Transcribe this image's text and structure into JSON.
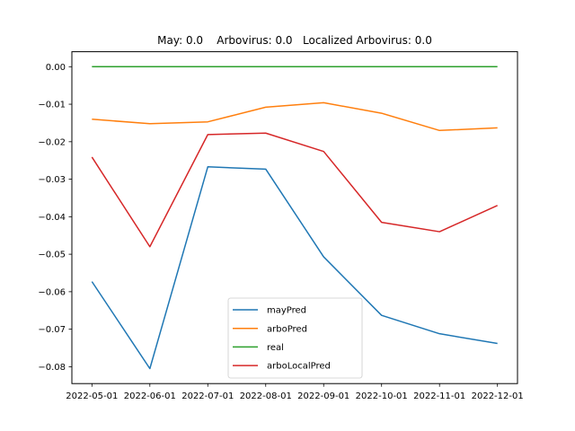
{
  "chart_data": {
    "type": "line",
    "title": "May: 0.0    Arbovirus: 0.0   Localized Arbovirus: 0.0",
    "xlabel": "",
    "ylabel": "",
    "x": [
      "2022-05-01",
      "2022-06-01",
      "2022-07-01",
      "2022-08-01",
      "2022-09-01",
      "2022-10-01",
      "2022-11-01",
      "2022-12-01"
    ],
    "ylim": [
      -0.0845,
      0.004
    ],
    "yticks": [
      0.0,
      -0.01,
      -0.02,
      -0.03,
      -0.04,
      -0.05,
      -0.06,
      -0.07,
      -0.08
    ],
    "ytick_labels": [
      "0.00",
      "−0.01",
      "−0.02",
      "−0.03",
      "−0.04",
      "−0.05",
      "−0.06",
      "−0.07",
      "−0.08"
    ],
    "grid": false,
    "legend_position": "lower-center",
    "series": [
      {
        "name": "mayPred",
        "color": "#1f77b4",
        "values": [
          -0.0573,
          -0.0805,
          -0.0267,
          -0.0273,
          -0.0507,
          -0.0663,
          -0.0712,
          -0.0738
        ]
      },
      {
        "name": "arboPred",
        "color": "#ff7f0e",
        "values": [
          -0.014,
          -0.0152,
          -0.0147,
          -0.0108,
          -0.0096,
          -0.0124,
          -0.017,
          -0.0163
        ]
      },
      {
        "name": "real",
        "color": "#2ca02c",
        "values": [
          0.0,
          0.0,
          0.0,
          0.0,
          0.0,
          0.0,
          0.0,
          0.0
        ]
      },
      {
        "name": "arboLocalPred",
        "color": "#d62728",
        "values": [
          -0.0241,
          -0.048,
          -0.0181,
          -0.0177,
          -0.0226,
          -0.0415,
          -0.044,
          -0.037
        ]
      }
    ]
  }
}
